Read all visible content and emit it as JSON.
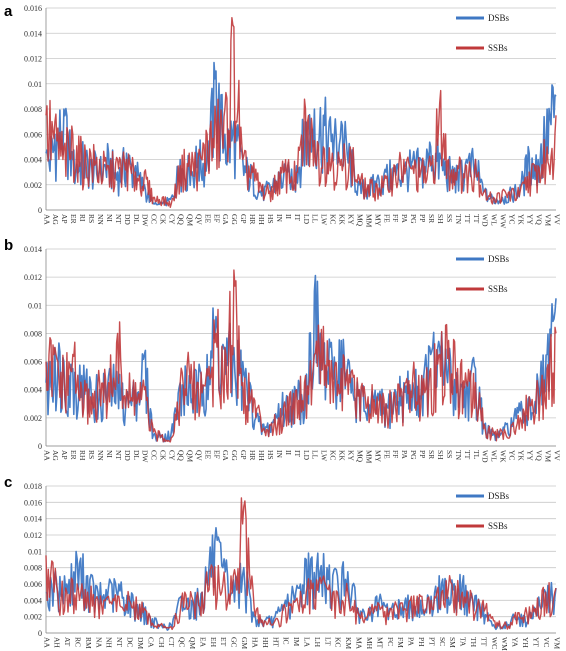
{
  "chart_data": [
    {
      "panel_label": "a",
      "type": "line",
      "ylim": [
        0,
        0.016
      ],
      "yticks": [
        "0",
        "0.002",
        "0.004",
        "0.006",
        "0.008",
        "0.01",
        "0.012",
        "0.014",
        "0.016"
      ],
      "grid": "horizontal",
      "legend_position": "top-right",
      "xlabels": [
        "AA",
        "AG",
        "AP",
        "ER",
        "RI",
        "RS",
        "NN",
        "NI",
        "NT",
        "DD",
        "DL",
        "DW",
        "CC",
        "CK",
        "CY",
        "QQ",
        "QM",
        "QV",
        "EE",
        "EF",
        "GA",
        "GG",
        "GP",
        "HR",
        "HH",
        "HS",
        "IN",
        "II",
        "IT",
        "LD",
        "LL",
        "LW",
        "KC",
        "KK",
        "KY",
        "MQ",
        "MM",
        "MY",
        "FE",
        "FF",
        "PA",
        "PG",
        "PP",
        "SR",
        "SH",
        "SS",
        "TN",
        "TT",
        "TT",
        "WD",
        "WL",
        "WW",
        "YC",
        "YK",
        "YY",
        "VQ",
        "VM",
        "VV"
      ],
      "series": [
        {
          "name": "DSBs",
          "color": "#3f78c4",
          "values": [
            0.0045,
            0.006,
            0.008,
            0.004,
            0.0045,
            0.004,
            0.0035,
            0.0045,
            0.003,
            0.0045,
            0.0035,
            0.002,
            0.0005,
            0.0005,
            0.001,
            0.004,
            0.0035,
            0.0045,
            0.0045,
            0.011,
            0.006,
            0.007,
            0.004,
            0.003,
            0.0015,
            0.002,
            0.003,
            0.003,
            0.0035,
            0.007,
            0.008,
            0.0075,
            0.006,
            0.007,
            0.0045,
            0.002,
            0.002,
            0.0025,
            0.003,
            0.0035,
            0.0035,
            0.004,
            0.004,
            0.005,
            0.0045,
            0.0035,
            0.003,
            0.004,
            0.004,
            0.0015,
            0.001,
            0.001,
            0.0015,
            0.002,
            0.0045,
            0.004,
            0.008,
            0.009
          ]
        },
        {
          "name": "SSBs",
          "color": "#c0393b",
          "values": [
            0.0075,
            0.007,
            0.005,
            0.006,
            0.0045,
            0.0045,
            0.004,
            0.0035,
            0.004,
            0.004,
            0.003,
            0.003,
            0.001,
            0.001,
            0.0005,
            0.0035,
            0.0045,
            0.004,
            0.006,
            0.007,
            0.008,
            0.0145,
            0.004,
            0.0035,
            0.002,
            0.0015,
            0.003,
            0.0035,
            0.003,
            0.008,
            0.0055,
            0.005,
            0.0045,
            0.004,
            0.005,
            0.0025,
            0.002,
            0.002,
            0.0025,
            0.0035,
            0.004,
            0.0035,
            0.0035,
            0.0035,
            0.0085,
            0.004,
            0.0035,
            0.0035,
            0.004,
            0.0015,
            0.001,
            0.0015,
            0.0015,
            0.0015,
            0.003,
            0.0035,
            0.005,
            0.0075
          ]
        }
      ]
    },
    {
      "panel_label": "b",
      "type": "line",
      "ylim": [
        0,
        0.014
      ],
      "yticks": [
        "0",
        "0.002",
        "0.004",
        "0.006",
        "0.008",
        "0.01",
        "0.012",
        "0.014"
      ],
      "grid": "horizontal",
      "legend_position": "top-right",
      "xlabels": [
        "AA",
        "AG",
        "AP",
        "ER",
        "RH",
        "RS",
        "NN",
        "NI",
        "NT",
        "DD",
        "DL",
        "DW",
        "CC",
        "CK",
        "CY",
        "QQ",
        "QM",
        "QV",
        "EE",
        "EF",
        "GA",
        "GG",
        "GP",
        "HR",
        "HH",
        "HS",
        "IN",
        "II",
        "IT",
        "LD",
        "LL",
        "LW",
        "KC",
        "KK",
        "KY",
        "MQ",
        "MM",
        "MY",
        "FE",
        "FF",
        "PA",
        "PG",
        "PP",
        "SR",
        "SH",
        "SS",
        "TN",
        "TT",
        "TL",
        "WD",
        "WL",
        "WK",
        "YC",
        "YK",
        "YY",
        "VQ",
        "VM",
        "VV"
      ],
      "series": [
        {
          "name": "DSBs",
          "color": "#3f78c4",
          "values": [
            0.0045,
            0.007,
            0.006,
            0.0055,
            0.005,
            0.0045,
            0.004,
            0.005,
            0.0045,
            0.0035,
            0.004,
            0.0065,
            0.0008,
            0.0008,
            0.001,
            0.0045,
            0.005,
            0.0045,
            0.0065,
            0.0092,
            0.007,
            0.007,
            0.006,
            0.0035,
            0.0015,
            0.0015,
            0.003,
            0.0035,
            0.004,
            0.0045,
            0.011,
            0.0065,
            0.006,
            0.0075,
            0.005,
            0.004,
            0.003,
            0.0035,
            0.003,
            0.004,
            0.0045,
            0.0045,
            0.005,
            0.0065,
            0.007,
            0.006,
            0.005,
            0.0045,
            0.0055,
            0.0015,
            0.0008,
            0.001,
            0.002,
            0.0025,
            0.0035,
            0.0045,
            0.0065,
            0.0105
          ]
        },
        {
          "name": "SSBs",
          "color": "#c0393b",
          "values": [
            0.006,
            0.007,
            0.005,
            0.0065,
            0.004,
            0.0035,
            0.0045,
            0.0045,
            0.008,
            0.004,
            0.0045,
            0.004,
            0.001,
            0.0008,
            0.0006,
            0.0045,
            0.0055,
            0.0045,
            0.0055,
            0.008,
            0.007,
            0.0125,
            0.0045,
            0.004,
            0.002,
            0.0015,
            0.002,
            0.0035,
            0.004,
            0.005,
            0.0065,
            0.0085,
            0.005,
            0.0055,
            0.0045,
            0.004,
            0.0035,
            0.0035,
            0.003,
            0.0035,
            0.004,
            0.005,
            0.005,
            0.0055,
            0.0065,
            0.0075,
            0.0055,
            0.0045,
            0.0045,
            0.0015,
            0.001,
            0.001,
            0.0015,
            0.002,
            0.0035,
            0.004,
            0.0055,
            0.008
          ]
        }
      ]
    },
    {
      "panel_label": "c",
      "type": "line",
      "ylim": [
        0,
        0.018
      ],
      "yticks": [
        "0",
        "0.002",
        "0.004",
        "0.006",
        "0.008",
        "0.01",
        "0.012",
        "0.014",
        "0.016",
        "0.018"
      ],
      "grid": "horizontal",
      "legend_position": "top-right",
      "xlabels": [
        "AA",
        "AH",
        "AT",
        "RC",
        "RM",
        "NA",
        "NH",
        "NT",
        "DC",
        "DM",
        "CA",
        "CH",
        "CT",
        "QC",
        "QM",
        "EA",
        "EH",
        "ET",
        "GC",
        "GM",
        "HA",
        "HH",
        "HT",
        "IC",
        "IM",
        "LA",
        "LH",
        "LT",
        "KC",
        "KM",
        "MA",
        "MH",
        "MT",
        "FC",
        "FM",
        "PA",
        "PH",
        "PT",
        "SC",
        "SM",
        "TA",
        "TH",
        "TT",
        "WC",
        "WM",
        "YA",
        "YH",
        "YT",
        "VC",
        "VM"
      ],
      "series": [
        {
          "name": "DSBs",
          "color": "#3f78c4",
          "values": [
            0.005,
            0.0065,
            0.006,
            0.009,
            0.007,
            0.005,
            0.0055,
            0.006,
            0.0045,
            0.0035,
            0.002,
            0.001,
            0.001,
            0.0045,
            0.004,
            0.005,
            0.012,
            0.008,
            0.0065,
            0.008,
            0.002,
            0.0015,
            0.002,
            0.004,
            0.005,
            0.009,
            0.008,
            0.008,
            0.007,
            0.0075,
            0.003,
            0.0025,
            0.004,
            0.003,
            0.0035,
            0.004,
            0.004,
            0.0045,
            0.006,
            0.0065,
            0.006,
            0.004,
            0.0035,
            0.001,
            0.001,
            0.002,
            0.002,
            0.003,
            0.005,
            0.0055
          ]
        },
        {
          "name": "SSBs",
          "color": "#c0393b",
          "values": [
            0.0095,
            0.006,
            0.005,
            0.006,
            0.005,
            0.004,
            0.0045,
            0.0045,
            0.004,
            0.0035,
            0.002,
            0.001,
            0.0008,
            0.004,
            0.0045,
            0.005,
            0.008,
            0.006,
            0.007,
            0.0155,
            0.003,
            0.0015,
            0.0015,
            0.003,
            0.004,
            0.005,
            0.0065,
            0.0055,
            0.005,
            0.005,
            0.0025,
            0.003,
            0.0035,
            0.0025,
            0.0035,
            0.004,
            0.0045,
            0.004,
            0.005,
            0.006,
            0.005,
            0.004,
            0.004,
            0.0015,
            0.001,
            0.002,
            0.0025,
            0.003,
            0.005,
            0.0055
          ]
        }
      ]
    }
  ]
}
